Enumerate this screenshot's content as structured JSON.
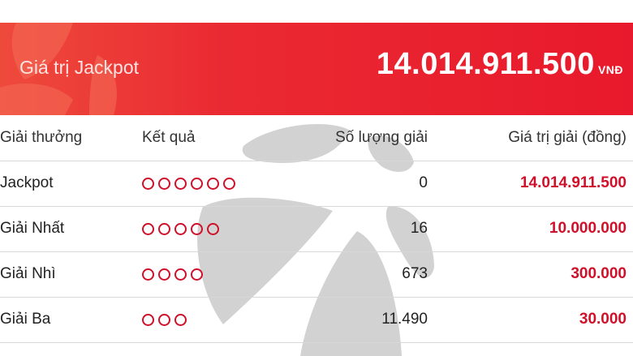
{
  "banner": {
    "title": "Giá trị Jackpot",
    "amount": "14.014.911.500",
    "unit": "VNĐ"
  },
  "table": {
    "headers": [
      "Giải thưởng",
      "Kết quả",
      "Số lượng giải",
      "Giá trị giải (đồng)"
    ],
    "rows": [
      {
        "prize": "Jackpot",
        "matches": 6,
        "count": "0",
        "value": "14.014.911.500"
      },
      {
        "prize": "Giải Nhất",
        "matches": 5,
        "count": "16",
        "value": "10.000.000"
      },
      {
        "prize": "Giải Nhì",
        "matches": 4,
        "count": "673",
        "value": "300.000"
      },
      {
        "prize": "Giải Ba",
        "matches": 3,
        "count": "11.490",
        "value": "30.000"
      }
    ]
  },
  "colors": {
    "banner": "#e8192c",
    "accent": "#d0102a"
  }
}
